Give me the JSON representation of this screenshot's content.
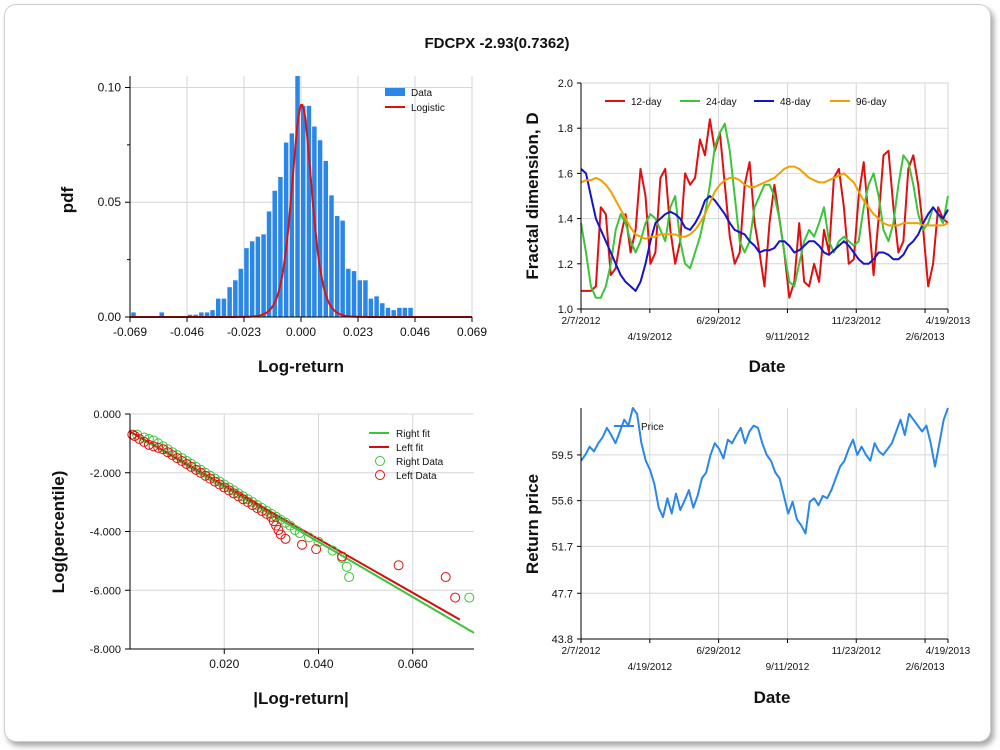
{
  "page": {
    "title": "FDCPX -2.93(0.7362)"
  },
  "chart_data": [
    {
      "id": "hist",
      "type": "bar",
      "xlabel": "Log-return",
      "ylabel": "pdf",
      "xlim": [
        -0.069,
        0.069
      ],
      "ylim": [
        0,
        0.105
      ],
      "xticks": [
        "-0.069",
        "-0.046",
        "-0.023",
        "0.000",
        "0.023",
        "0.046",
        "0.069"
      ],
      "yticks": [
        "0.00",
        "0.05",
        "0.10"
      ],
      "legend": [
        "Data",
        "Logistic"
      ],
      "legend_position": "top-right",
      "bar_color": "#2a87e8",
      "fit_color": "#e01010",
      "bars": [
        {
          "x": -0.0676,
          "y": 0.002
        },
        {
          "x": -0.0562,
          "y": 0.002
        },
        {
          "x": -0.0448,
          "y": 0.001
        },
        {
          "x": -0.0425,
          "y": 0.001
        },
        {
          "x": -0.0402,
          "y": 0.002
        },
        {
          "x": -0.0379,
          "y": 0.002
        },
        {
          "x": -0.0357,
          "y": 0.003
        },
        {
          "x": -0.0334,
          "y": 0.008
        },
        {
          "x": -0.0311,
          "y": 0.008
        },
        {
          "x": -0.0288,
          "y": 0.013
        },
        {
          "x": -0.0265,
          "y": 0.016
        },
        {
          "x": -0.0243,
          "y": 0.021
        },
        {
          "x": -0.022,
          "y": 0.03
        },
        {
          "x": -0.0197,
          "y": 0.033
        },
        {
          "x": -0.0174,
          "y": 0.035
        },
        {
          "x": -0.0151,
          "y": 0.036
        },
        {
          "x": -0.0129,
          "y": 0.046
        },
        {
          "x": -0.0106,
          "y": 0.055
        },
        {
          "x": -0.0083,
          "y": 0.061
        },
        {
          "x": -0.006,
          "y": 0.076
        },
        {
          "x": -0.0037,
          "y": 0.08
        },
        {
          "x": -0.0014,
          "y": 0.105
        },
        {
          "x": 0.0009,
          "y": 0.092
        },
        {
          "x": 0.0032,
          "y": 0.092
        },
        {
          "x": 0.0054,
          "y": 0.083
        },
        {
          "x": 0.0077,
          "y": 0.077
        },
        {
          "x": 0.01,
          "y": 0.068
        },
        {
          "x": 0.0123,
          "y": 0.053
        },
        {
          "x": 0.0146,
          "y": 0.044
        },
        {
          "x": 0.0168,
          "y": 0.042
        },
        {
          "x": 0.0191,
          "y": 0.021
        },
        {
          "x": 0.0214,
          "y": 0.02
        },
        {
          "x": 0.0237,
          "y": 0.016
        },
        {
          "x": 0.026,
          "y": 0.016
        },
        {
          "x": 0.0282,
          "y": 0.008
        },
        {
          "x": 0.0305,
          "y": 0.009
        },
        {
          "x": 0.0328,
          "y": 0.006
        },
        {
          "x": 0.0351,
          "y": 0.004
        },
        {
          "x": 0.0374,
          "y": 0.003
        },
        {
          "x": 0.0397,
          "y": 0.004
        },
        {
          "x": 0.0419,
          "y": 0.004
        },
        {
          "x": 0.0442,
          "y": 0.004
        }
      ],
      "fit_params": {
        "mu": 0.0003,
        "s": 0.0027
      }
    },
    {
      "id": "fractal",
      "type": "line",
      "xlabel": "Date",
      "ylabel": "Fractal dimension, D",
      "ylim": [
        1.0,
        2.0
      ],
      "yticks": [
        "1.0",
        "1.2",
        "1.4",
        "1.6",
        "1.8",
        "2.0"
      ],
      "xticks_upper": [
        "2/7/2012",
        "6/29/2012",
        "11/23/2012",
        "4/19/2013"
      ],
      "xticks_lower": [
        "4/19/2012",
        "9/11/2012",
        "2/6/2013"
      ],
      "legend_position": "top",
      "series": [
        {
          "name": "12-day",
          "color": "#e01010",
          "values": [
            1.08,
            1.08,
            1.08,
            1.1,
            1.45,
            1.42,
            1.15,
            1.18,
            1.32,
            1.42,
            1.25,
            1.35,
            1.62,
            1.5,
            1.2,
            1.25,
            1.58,
            1.62,
            1.35,
            1.2,
            1.3,
            1.6,
            1.55,
            1.58,
            1.75,
            1.68,
            1.84,
            1.7,
            1.78,
            1.55,
            1.32,
            1.2,
            1.25,
            1.55,
            1.65,
            1.38,
            1.25,
            1.1,
            1.38,
            1.55,
            1.4,
            1.25,
            1.05,
            1.12,
            1.38,
            1.12,
            1.1,
            1.2,
            1.12,
            1.35,
            1.25,
            1.58,
            1.62,
            1.45,
            1.2,
            1.22,
            1.5,
            1.65,
            1.4,
            1.15,
            1.4,
            1.68,
            1.7,
            1.45,
            1.25,
            1.3,
            1.62,
            1.68,
            1.55,
            1.35,
            1.1,
            1.2,
            1.45,
            1.4,
            1.38
          ]
        },
        {
          "name": "24-day",
          "color": "#3cc43c",
          "values": [
            1.38,
            1.25,
            1.1,
            1.05,
            1.05,
            1.1,
            1.2,
            1.35,
            1.42,
            1.38,
            1.3,
            1.25,
            1.3,
            1.38,
            1.42,
            1.4,
            1.35,
            1.3,
            1.45,
            1.5,
            1.3,
            1.2,
            1.18,
            1.25,
            1.32,
            1.42,
            1.55,
            1.72,
            1.78,
            1.82,
            1.7,
            1.5,
            1.3,
            1.25,
            1.3,
            1.45,
            1.5,
            1.55,
            1.55,
            1.5,
            1.4,
            1.25,
            1.12,
            1.1,
            1.2,
            1.3,
            1.35,
            1.32,
            1.38,
            1.45,
            1.3,
            1.25,
            1.3,
            1.32,
            1.3,
            1.28,
            1.3,
            1.45,
            1.55,
            1.6,
            1.5,
            1.35,
            1.3,
            1.38,
            1.55,
            1.68,
            1.65,
            1.55,
            1.42,
            1.35,
            1.38,
            1.45,
            1.42,
            1.38,
            1.5
          ]
        },
        {
          "name": "48-day",
          "color": "#1414c8",
          "values": [
            1.62,
            1.6,
            1.5,
            1.4,
            1.35,
            1.3,
            1.25,
            1.2,
            1.15,
            1.12,
            1.1,
            1.08,
            1.12,
            1.2,
            1.3,
            1.38,
            1.4,
            1.42,
            1.43,
            1.42,
            1.4,
            1.36,
            1.35,
            1.38,
            1.42,
            1.48,
            1.5,
            1.48,
            1.45,
            1.42,
            1.38,
            1.35,
            1.34,
            1.33,
            1.3,
            1.28,
            1.25,
            1.26,
            1.26,
            1.27,
            1.3,
            1.3,
            1.28,
            1.25,
            1.26,
            1.28,
            1.3,
            1.3,
            1.28,
            1.25,
            1.24,
            1.26,
            1.28,
            1.3,
            1.28,
            1.25,
            1.22,
            1.2,
            1.2,
            1.22,
            1.25,
            1.25,
            1.24,
            1.22,
            1.22,
            1.24,
            1.28,
            1.3,
            1.33,
            1.38,
            1.42,
            1.45,
            1.42,
            1.4,
            1.44
          ]
        },
        {
          "name": "96-day",
          "color": "#f0a000",
          "values": [
            1.56,
            1.57,
            1.57,
            1.58,
            1.57,
            1.55,
            1.52,
            1.48,
            1.44,
            1.4,
            1.36,
            1.33,
            1.32,
            1.31,
            1.32,
            1.32,
            1.33,
            1.33,
            1.33,
            1.33,
            1.32,
            1.32,
            1.33,
            1.35,
            1.38,
            1.42,
            1.47,
            1.52,
            1.55,
            1.57,
            1.58,
            1.58,
            1.57,
            1.55,
            1.54,
            1.54,
            1.55,
            1.56,
            1.57,
            1.58,
            1.6,
            1.62,
            1.63,
            1.63,
            1.62,
            1.6,
            1.58,
            1.57,
            1.56,
            1.56,
            1.57,
            1.58,
            1.59,
            1.6,
            1.58,
            1.56,
            1.52,
            1.48,
            1.45,
            1.42,
            1.4,
            1.38,
            1.37,
            1.37,
            1.37,
            1.38,
            1.38,
            1.38,
            1.38,
            1.37,
            1.37,
            1.37,
            1.37,
            1.37,
            1.38
          ]
        }
      ]
    },
    {
      "id": "tail",
      "type": "scatter",
      "xlabel": "|Log-return|",
      "ylabel": "Log(percentile)",
      "xlim": [
        0,
        0.073
      ],
      "ylim": [
        -8.0,
        0.0
      ],
      "xticks": [
        "0.020",
        "0.040",
        "0.060"
      ],
      "yticks": [
        "0.000",
        "-2.000",
        "-4.000",
        "-6.000",
        "-8.000"
      ],
      "legend": [
        "Right fit",
        "Left fit",
        "Right Data",
        "Left Data"
      ],
      "legend_position": "top-right",
      "right_fit": {
        "x": [
          0.0,
          0.073
        ],
        "y": [
          -0.6,
          -7.45
        ]
      },
      "left_fit": {
        "x": [
          0.0,
          0.07
        ],
        "y": [
          -0.6,
          -7.0
        ]
      },
      "right_data": {
        "x": [
          0.0015,
          0.003,
          0.004,
          0.005,
          0.006,
          0.007,
          0.008,
          0.009,
          0.01,
          0.011,
          0.012,
          0.013,
          0.014,
          0.015,
          0.016,
          0.017,
          0.018,
          0.019,
          0.02,
          0.021,
          0.022,
          0.023,
          0.024,
          0.025,
          0.026,
          0.027,
          0.028,
          0.029,
          0.03,
          0.031,
          0.032,
          0.033,
          0.034,
          0.035,
          0.036,
          0.038,
          0.04,
          0.043,
          0.045,
          0.046,
          0.0465,
          0.072
        ],
        "y": [
          -0.7,
          -0.8,
          -0.85,
          -0.9,
          -1.0,
          -1.1,
          -1.2,
          -1.3,
          -1.4,
          -1.5,
          -1.6,
          -1.7,
          -1.8,
          -1.9,
          -2.0,
          -2.1,
          -2.2,
          -2.3,
          -2.4,
          -2.5,
          -2.6,
          -2.7,
          -2.8,
          -2.9,
          -3.0,
          -3.1,
          -3.2,
          -3.3,
          -3.4,
          -3.5,
          -3.6,
          -3.7,
          -3.8,
          -3.95,
          -4.05,
          -4.2,
          -4.35,
          -4.65,
          -4.9,
          -5.2,
          -5.55,
          -6.25
        ]
      },
      "left_data": {
        "x": [
          0.0005,
          0.001,
          0.002,
          0.003,
          0.004,
          0.005,
          0.006,
          0.007,
          0.008,
          0.009,
          0.01,
          0.011,
          0.012,
          0.013,
          0.014,
          0.015,
          0.016,
          0.017,
          0.018,
          0.019,
          0.02,
          0.021,
          0.022,
          0.023,
          0.024,
          0.025,
          0.026,
          0.027,
          0.028,
          0.029,
          0.03,
          0.0305,
          0.031,
          0.0315,
          0.032,
          0.033,
          0.0365,
          0.0395,
          0.045,
          0.057,
          0.067,
          0.069
        ],
        "y": [
          -0.7,
          -0.75,
          -0.85,
          -0.95,
          -1.05,
          -1.1,
          -1.15,
          -1.2,
          -1.3,
          -1.4,
          -1.5,
          -1.6,
          -1.7,
          -1.8,
          -1.9,
          -2.0,
          -2.1,
          -2.2,
          -2.3,
          -2.4,
          -2.5,
          -2.6,
          -2.7,
          -2.8,
          -2.9,
          -3.0,
          -3.1,
          -3.2,
          -3.3,
          -3.4,
          -3.5,
          -3.65,
          -3.8,
          -3.95,
          -4.1,
          -4.25,
          -4.45,
          -4.6,
          -4.85,
          -5.15,
          -5.55,
          -6.25
        ]
      }
    },
    {
      "id": "price",
      "type": "line",
      "xlabel": "Date",
      "ylabel": "Return price",
      "ylim": [
        43.8,
        63.5
      ],
      "yticks": [
        "59.5",
        "55.6",
        "51.7",
        "47.7",
        "43.8"
      ],
      "xticks_upper": [
        "2/7/2012",
        "6/29/2012",
        "11/23/2012",
        "4/19/2013"
      ],
      "xticks_lower": [
        "4/19/2012",
        "9/11/2012",
        "2/6/2013"
      ],
      "legend_position": "top-left",
      "series": [
        {
          "name": "Price",
          "color": "#2a87e8",
          "values": [
            59.0,
            59.5,
            60.2,
            59.8,
            60.5,
            61.0,
            61.8,
            61.2,
            60.5,
            61.5,
            62.5,
            62.0,
            63.5,
            63.0,
            60.5,
            59.0,
            58.2,
            57.0,
            55.0,
            54.2,
            55.8,
            54.5,
            56.2,
            54.8,
            55.6,
            56.5,
            55.0,
            56.0,
            57.5,
            58.0,
            59.5,
            60.5,
            60.0,
            59.2,
            60.8,
            60.5,
            61.2,
            61.8,
            60.5,
            61.5,
            62.0,
            61.8,
            60.5,
            59.5,
            59.0,
            58.0,
            57.5,
            56.0,
            54.5,
            55.5,
            54.0,
            53.5,
            52.8,
            55.5,
            55.8,
            55.2,
            56.0,
            55.8,
            56.5,
            57.5,
            58.5,
            59.0,
            60.0,
            60.8,
            59.5,
            60.2,
            59.5,
            59.0,
            60.5,
            59.8,
            59.5,
            60.0,
            60.5,
            61.5,
            62.5,
            61.2,
            63.0,
            62.5,
            62.0,
            61.5,
            62.0,
            60.5,
            58.5,
            60.5,
            62.5,
            63.5
          ]
        }
      ]
    }
  ]
}
